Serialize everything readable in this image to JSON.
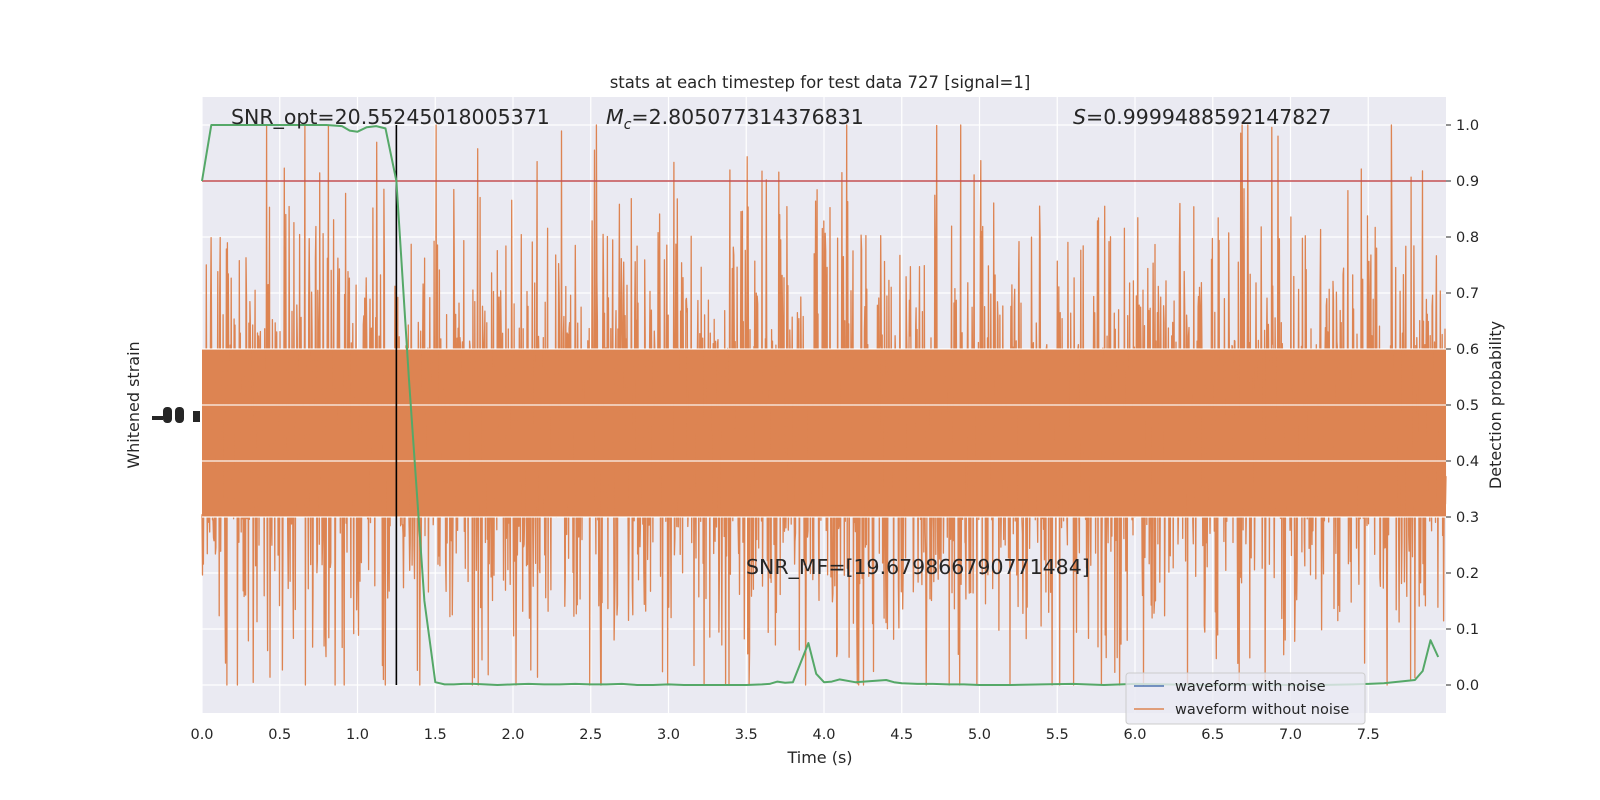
{
  "chart_data": {
    "type": "line",
    "title": "stats at each timestep for test data 727 [signal=1]",
    "xlabel": "Time (s)",
    "ylabel_left": "Whitened strain",
    "ylabel_right": "Detection probability",
    "xlim": [
      0.0,
      8.0
    ],
    "ylim_right": [
      -0.05,
      1.05
    ],
    "xticks": [
      "0.0",
      "0.5",
      "1.0",
      "1.5",
      "2.0",
      "2.5",
      "3.0",
      "3.5",
      "4.0",
      "4.5",
      "5.0",
      "5.5",
      "6.0",
      "6.5",
      "7.0",
      "7.5"
    ],
    "yticks_right": [
      "0.0",
      "0.1",
      "0.2",
      "0.3",
      "0.4",
      "0.5",
      "0.6",
      "0.7",
      "0.8",
      "0.9",
      "1.0"
    ],
    "grid": true,
    "annotations": {
      "snr_opt": "SNR_opt=20.55245018005371",
      "mc_symbol": "M",
      "mc_subscript": "c",
      "mc_value": "=2.805077314376831",
      "s_symbol": "S",
      "s_value": "=0.9999488592147827",
      "snr_mf": "SNR_MF=[19.679866790771484]"
    },
    "threshold": 0.9,
    "merger_time": 1.25,
    "series": [
      {
        "name": "waveform with noise",
        "color": "#4c72b0"
      },
      {
        "name": "waveform without noise",
        "color": "#dd8452"
      }
    ],
    "detection_probability": {
      "color": "#55a868",
      "x": [
        0.0,
        0.06,
        0.12,
        0.2,
        0.3,
        0.4,
        0.5,
        0.6,
        0.7,
        0.8,
        0.9,
        0.95,
        1.0,
        1.06,
        1.12,
        1.18,
        1.25,
        1.33,
        1.43,
        1.5,
        1.56,
        1.62,
        1.68,
        1.75,
        1.82,
        1.9,
        2.0,
        2.1,
        2.2,
        2.3,
        2.4,
        2.5,
        2.6,
        2.7,
        2.8,
        2.9,
        3.0,
        3.1,
        3.2,
        3.3,
        3.4,
        3.5,
        3.6,
        3.65,
        3.7,
        3.75,
        3.8,
        3.85,
        3.9,
        3.95,
        4.0,
        4.05,
        4.1,
        4.2,
        4.3,
        4.4,
        4.45,
        4.5,
        4.6,
        4.7,
        4.8,
        4.9,
        5.0,
        5.2,
        5.4,
        5.6,
        5.8,
        6.0,
        6.2,
        6.4,
        6.6,
        6.8,
        7.0,
        7.2,
        7.4,
        7.5,
        7.6,
        7.7,
        7.8,
        7.85,
        7.9,
        7.95
      ],
      "y": [
        0.9,
        1.0,
        1.0,
        1.0,
        1.0,
        1.0,
        1.0,
        1.0,
        1.0,
        1.0,
        0.998,
        0.99,
        0.988,
        0.996,
        0.998,
        0.994,
        0.9,
        0.55,
        0.15,
        0.005,
        0.001,
        0.001,
        0.002,
        0.002,
        0.001,
        0.0,
        0.001,
        0.002,
        0.001,
        0.001,
        0.002,
        0.001,
        0.001,
        0.002,
        0.0,
        0.0,
        0.001,
        0.0,
        0.0,
        0.0,
        0.0,
        0.0,
        0.001,
        0.002,
        0.006,
        0.004,
        0.005,
        0.04,
        0.075,
        0.02,
        0.005,
        0.006,
        0.01,
        0.005,
        0.007,
        0.009,
        0.005,
        0.003,
        0.002,
        0.002,
        0.001,
        0.001,
        0.0,
        0.0,
        0.001,
        0.002,
        0.0,
        0.002,
        0.001,
        0.0,
        0.0,
        0.001,
        0.0,
        0.0,
        0.001,
        0.002,
        0.003,
        0.006,
        0.009,
        0.025,
        0.08,
        0.05
      ]
    }
  }
}
